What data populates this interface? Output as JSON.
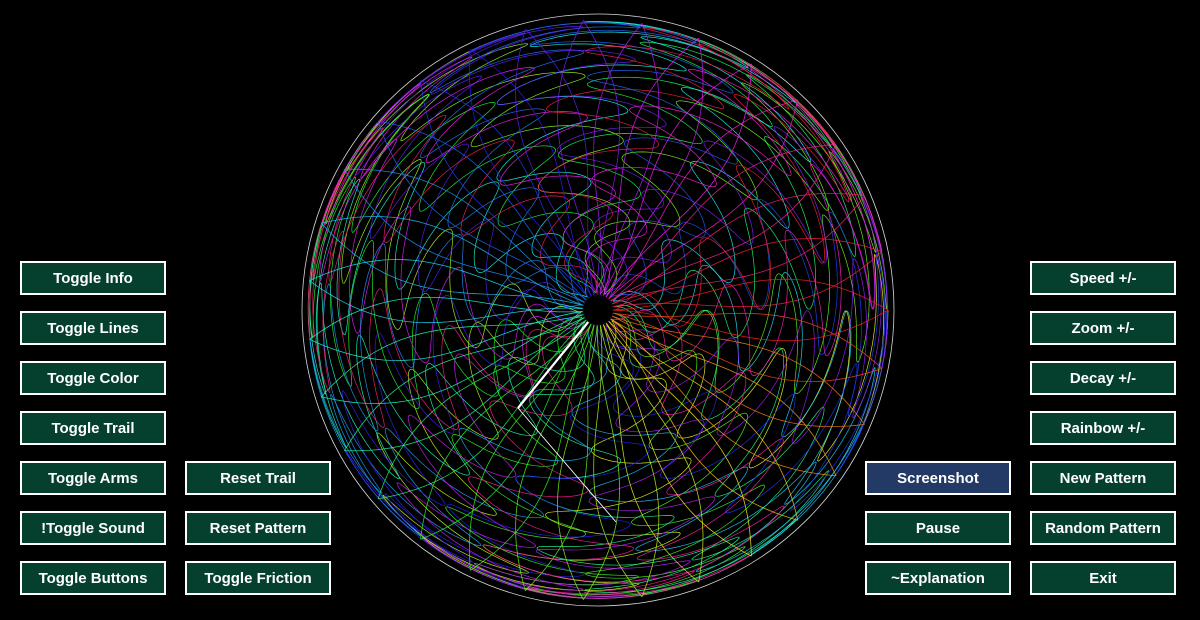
{
  "colors": {
    "background": "#000000",
    "button_fill": "#05402f",
    "button_active_fill": "#233a66",
    "button_border": "#ffffff",
    "button_text": "#ffffff",
    "guide_circle": "#ffffff"
  },
  "left_column": [
    {
      "id": "toggle-info",
      "label": "Toggle Info"
    },
    {
      "id": "toggle-lines",
      "label": "Toggle Lines"
    },
    {
      "id": "toggle-color",
      "label": "Toggle Color"
    },
    {
      "id": "toggle-trail",
      "label": "Toggle Trail"
    },
    {
      "id": "toggle-arms",
      "label": "Toggle Arms"
    },
    {
      "id": "toggle-sound",
      "label": "!Toggle Sound"
    },
    {
      "id": "toggle-buttons",
      "label": "Toggle Buttons"
    }
  ],
  "left_column_2": [
    {
      "id": "reset-trail",
      "label": "Reset Trail"
    },
    {
      "id": "reset-pattern",
      "label": "Reset Pattern"
    },
    {
      "id": "toggle-friction",
      "label": "Toggle Friction"
    }
  ],
  "right_column_2": [
    {
      "id": "screenshot",
      "label": "Screenshot",
      "active": true
    },
    {
      "id": "pause",
      "label": "Pause"
    },
    {
      "id": "explanation",
      "label": "~Explanation"
    }
  ],
  "right_column": [
    {
      "id": "speed",
      "label": "Speed +/-"
    },
    {
      "id": "zoom",
      "label": "Zoom +/-"
    },
    {
      "id": "decay",
      "label": "Decay +/-"
    },
    {
      "id": "rainbow",
      "label": "Rainbow +/-"
    },
    {
      "id": "new-pattern",
      "label": "New Pattern"
    },
    {
      "id": "random-pattern",
      "label": "Random Pattern"
    },
    {
      "id": "exit",
      "label": "Exit"
    }
  ]
}
